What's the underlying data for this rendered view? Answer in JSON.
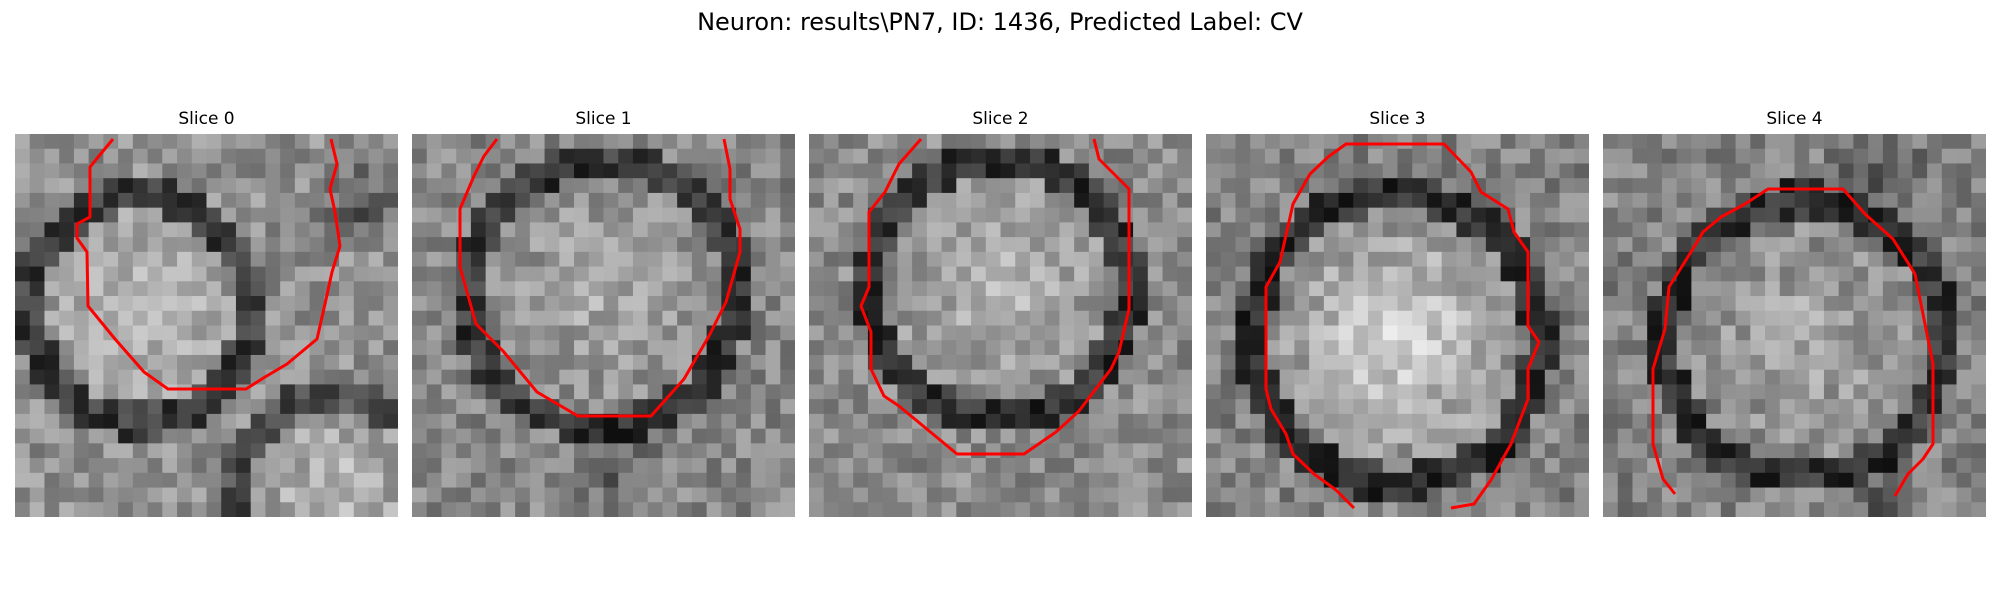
{
  "figure": {
    "title": "Neuron: results\\PN7, ID: 1436, Predicted Label: CV"
  },
  "panels": [
    {
      "title": "Slice 0"
    },
    {
      "title": "Slice 1"
    },
    {
      "title": "Slice 2"
    },
    {
      "title": "Slice 3"
    },
    {
      "title": "Slice 4"
    }
  ],
  "colors": {
    "contour": "#ff0000"
  }
}
